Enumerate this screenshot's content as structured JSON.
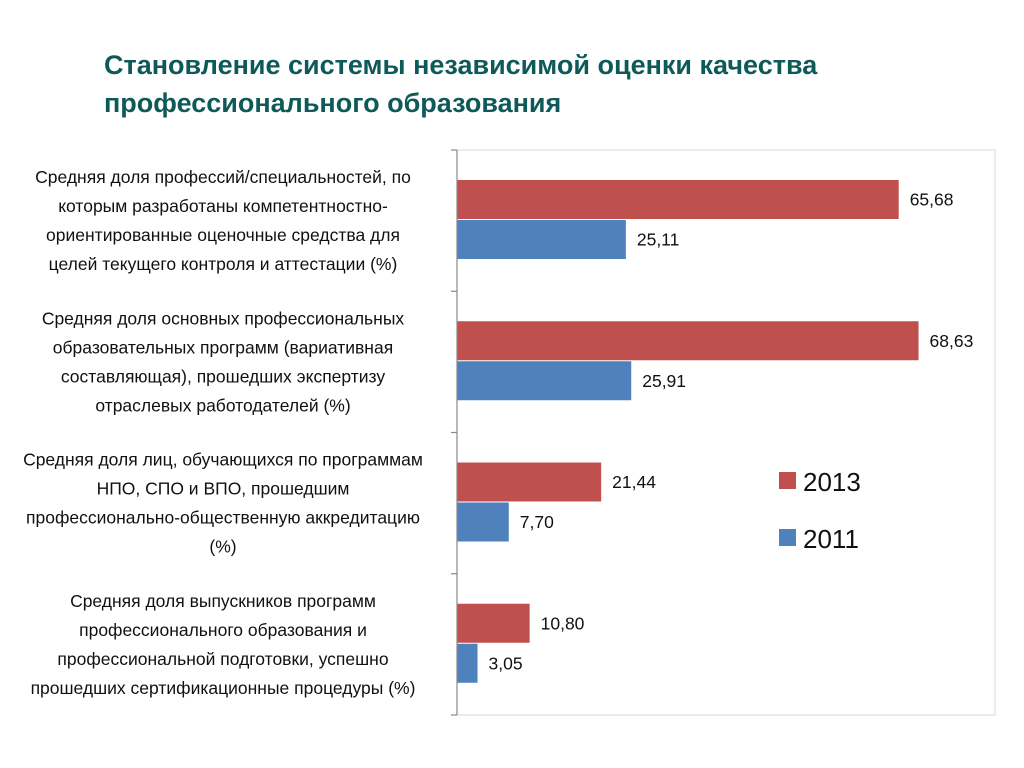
{
  "title": "Становление системы независимой оценки качества профессионального образования",
  "colors": {
    "2013": "#c0504d",
    "2011": "#4f81bd",
    "title": "#0e5a59"
  },
  "chart_data": {
    "type": "bar",
    "orientation": "horizontal",
    "categories": [
      [
        "Средняя доля профессий/специальностей, по",
        "которым  разработаны компетентностно-",
        "ориентированные оценочные средства для",
        "целей  текущего контроля и  аттестации (%)"
      ],
      [
        "Средняя доля основных профессиональных",
        "образовательных программ (вариативная",
        "составляющая), прошедших экспертизу",
        "отраслевых работодателей (%)"
      ],
      [
        "Средняя доля лиц, обучающихся по программам",
        "НПО, СПО и ВПО, прошедшим",
        "профессионально-общественную аккредитацию",
        "(%)"
      ],
      [
        "Средняя доля выпускников программ",
        "профессионального образования и",
        "профессиональной подготовки, успешно",
        "прошедших сертификационные процедуры (%)"
      ]
    ],
    "series": [
      {
        "name": "2013",
        "values": [
          65.68,
          68.63,
          21.44,
          10.8
        ],
        "labels": [
          "65,68",
          "68,63",
          "21,44",
          "10,80"
        ]
      },
      {
        "name": "2011",
        "values": [
          25.11,
          25.91,
          7.7,
          3.05
        ],
        "labels": [
          "25,11",
          "25,91",
          "7,70",
          "3,05"
        ]
      }
    ],
    "xlim": [
      0,
      80
    ],
    "grid": false,
    "legend": "right"
  }
}
